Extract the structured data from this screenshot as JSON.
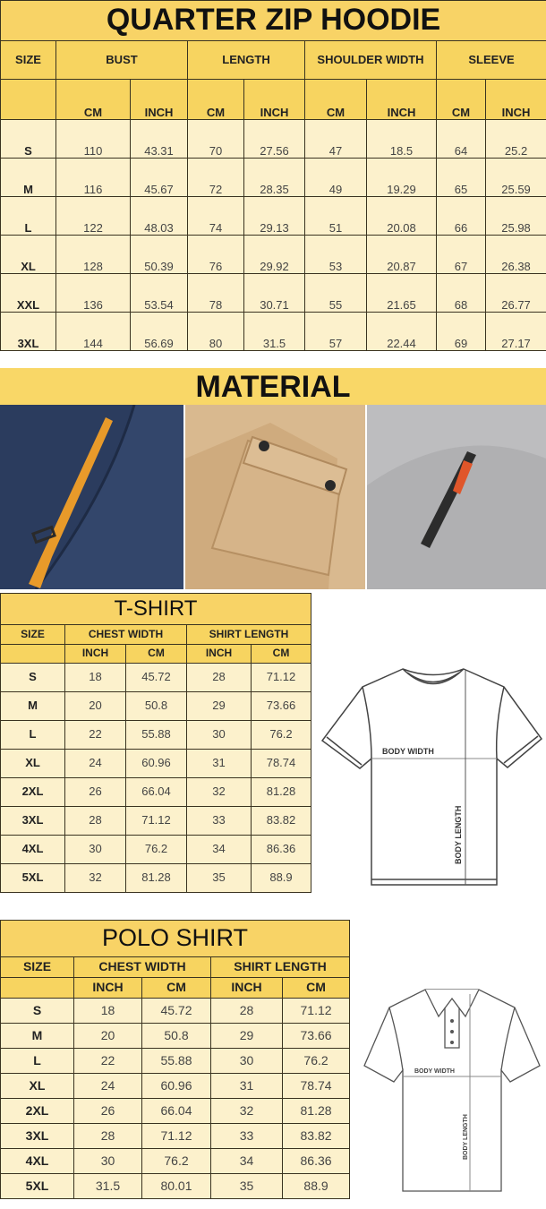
{
  "hoodie": {
    "title": "QUARTER ZIP HOODIE",
    "size_label": "SIZE",
    "groups": [
      "BUST",
      "LENGTH",
      "SHOULDER WIDTH",
      "SLEEVE"
    ],
    "units": [
      "CM",
      "INCH",
      "CM",
      "INCH",
      "CM",
      "INCH",
      "CM",
      "INCH"
    ],
    "rows": [
      [
        "S",
        "110",
        "43.31",
        "70",
        "27.56",
        "47",
        "18.5",
        "64",
        "25.2"
      ],
      [
        "M",
        "116",
        "45.67",
        "72",
        "28.35",
        "49",
        "19.29",
        "65",
        "25.59"
      ],
      [
        "L",
        "122",
        "48.03",
        "74",
        "29.13",
        "51",
        "20.08",
        "66",
        "25.98"
      ],
      [
        "XL",
        "128",
        "50.39",
        "76",
        "29.92",
        "53",
        "20.87",
        "67",
        "26.38"
      ],
      [
        "XXL",
        "136",
        "53.54",
        "78",
        "30.71",
        "55",
        "21.65",
        "68",
        "26.77"
      ],
      [
        "3XL",
        "144",
        "56.69",
        "80",
        "31.5",
        "57",
        "22.44",
        "69",
        "27.17"
      ]
    ]
  },
  "material": {
    "title": "MATERIAL",
    "photos": [
      "navy-fleece-pocket-orange-strap",
      "tan-fleece-flap-pocket",
      "grey-fleece-zip-pocket"
    ]
  },
  "tshirt": {
    "title": "T-SHIRT",
    "size_label": "SIZE",
    "groups": [
      "CHEST WIDTH",
      "SHIRT LENGTH"
    ],
    "units": [
      "INCH",
      "CM",
      "INCH",
      "CM"
    ],
    "rows": [
      [
        "S",
        "18",
        "45.72",
        "28",
        "71.12"
      ],
      [
        "M",
        "20",
        "50.8",
        "29",
        "73.66"
      ],
      [
        "L",
        "22",
        "55.88",
        "30",
        "76.2"
      ],
      [
        "XL",
        "24",
        "60.96",
        "31",
        "78.74"
      ],
      [
        "2XL",
        "26",
        "66.04",
        "32",
        "81.28"
      ],
      [
        "3XL",
        "28",
        "71.12",
        "33",
        "83.82"
      ],
      [
        "4XL",
        "30",
        "76.2",
        "34",
        "86.36"
      ],
      [
        "5XL",
        "32",
        "81.28",
        "35",
        "88.9"
      ]
    ],
    "diagram": {
      "width_label": "BODY WIDTH",
      "length_label": "BODY LENGTH"
    }
  },
  "polo": {
    "title": "POLO SHIRT",
    "size_label": "SIZE",
    "groups": [
      "CHEST WIDTH",
      "SHIRT LENGTH"
    ],
    "units": [
      "INCH",
      "CM",
      "INCH",
      "CM"
    ],
    "rows": [
      [
        "S",
        "18",
        "45.72",
        "28",
        "71.12"
      ],
      [
        "M",
        "20",
        "50.8",
        "29",
        "73.66"
      ],
      [
        "L",
        "22",
        "55.88",
        "30",
        "76.2"
      ],
      [
        "XL",
        "24",
        "60.96",
        "31",
        "78.74"
      ],
      [
        "2XL",
        "26",
        "66.04",
        "32",
        "81.28"
      ],
      [
        "3XL",
        "28",
        "71.12",
        "33",
        "83.82"
      ],
      [
        "4XL",
        "30",
        "76.2",
        "34",
        "86.36"
      ],
      [
        "5XL",
        "31.5",
        "80.01",
        "35",
        "88.9"
      ]
    ],
    "diagram": {
      "width_label": "BODY WIDTH",
      "length_label": "BODY LENGTH"
    }
  },
  "colors": {
    "header": "#f7d460",
    "cell": "#fcf1cc",
    "border": "#3a3320"
  }
}
